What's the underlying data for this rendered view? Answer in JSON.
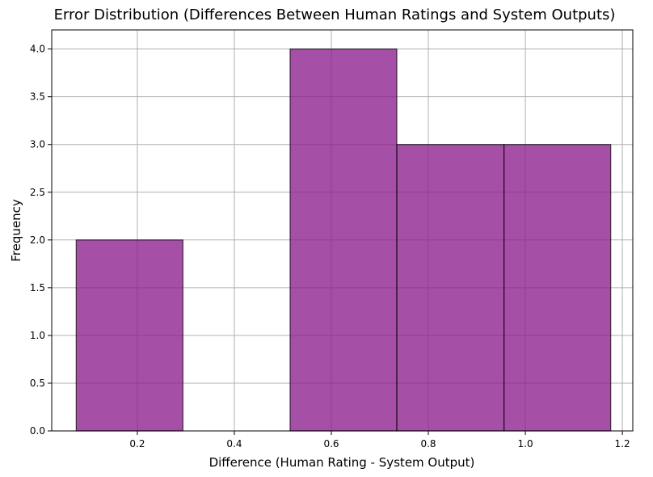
{
  "chart_data": {
    "type": "bar",
    "title": "Error Distribution (Differences Between Human Ratings and System Outputs)",
    "xlabel": "Difference (Human Rating - System Output)",
    "ylabel": "Frequency",
    "xlim": [
      0.0235,
      1.2215
    ],
    "ylim": [
      0,
      4.2
    ],
    "xticks": [
      0.2,
      0.4,
      0.6,
      0.8,
      1.0,
      1.2
    ],
    "xtick_labels": [
      "0.2",
      "0.4",
      "0.6",
      "0.8",
      "1.0",
      "1.2"
    ],
    "yticks": [
      0.0,
      0.5,
      1.0,
      1.5,
      2.0,
      2.5,
      3.0,
      3.5,
      4.0
    ],
    "ytick_labels": [
      "0.0",
      "0.5",
      "1.0",
      "1.5",
      "2.0",
      "2.5",
      "3.0",
      "3.5",
      "4.0"
    ],
    "grid": true,
    "bar_color": "#8b1a8b",
    "bar_opacity": 0.77,
    "bins": [
      {
        "x0": 0.074,
        "x1": 0.294,
        "count": 2
      },
      {
        "x0": 0.294,
        "x1": 0.515,
        "count": 0
      },
      {
        "x0": 0.515,
        "x1": 0.735,
        "count": 4
      },
      {
        "x0": 0.735,
        "x1": 0.956,
        "count": 3
      },
      {
        "x0": 0.956,
        "x1": 1.176,
        "count": 3
      }
    ]
  }
}
